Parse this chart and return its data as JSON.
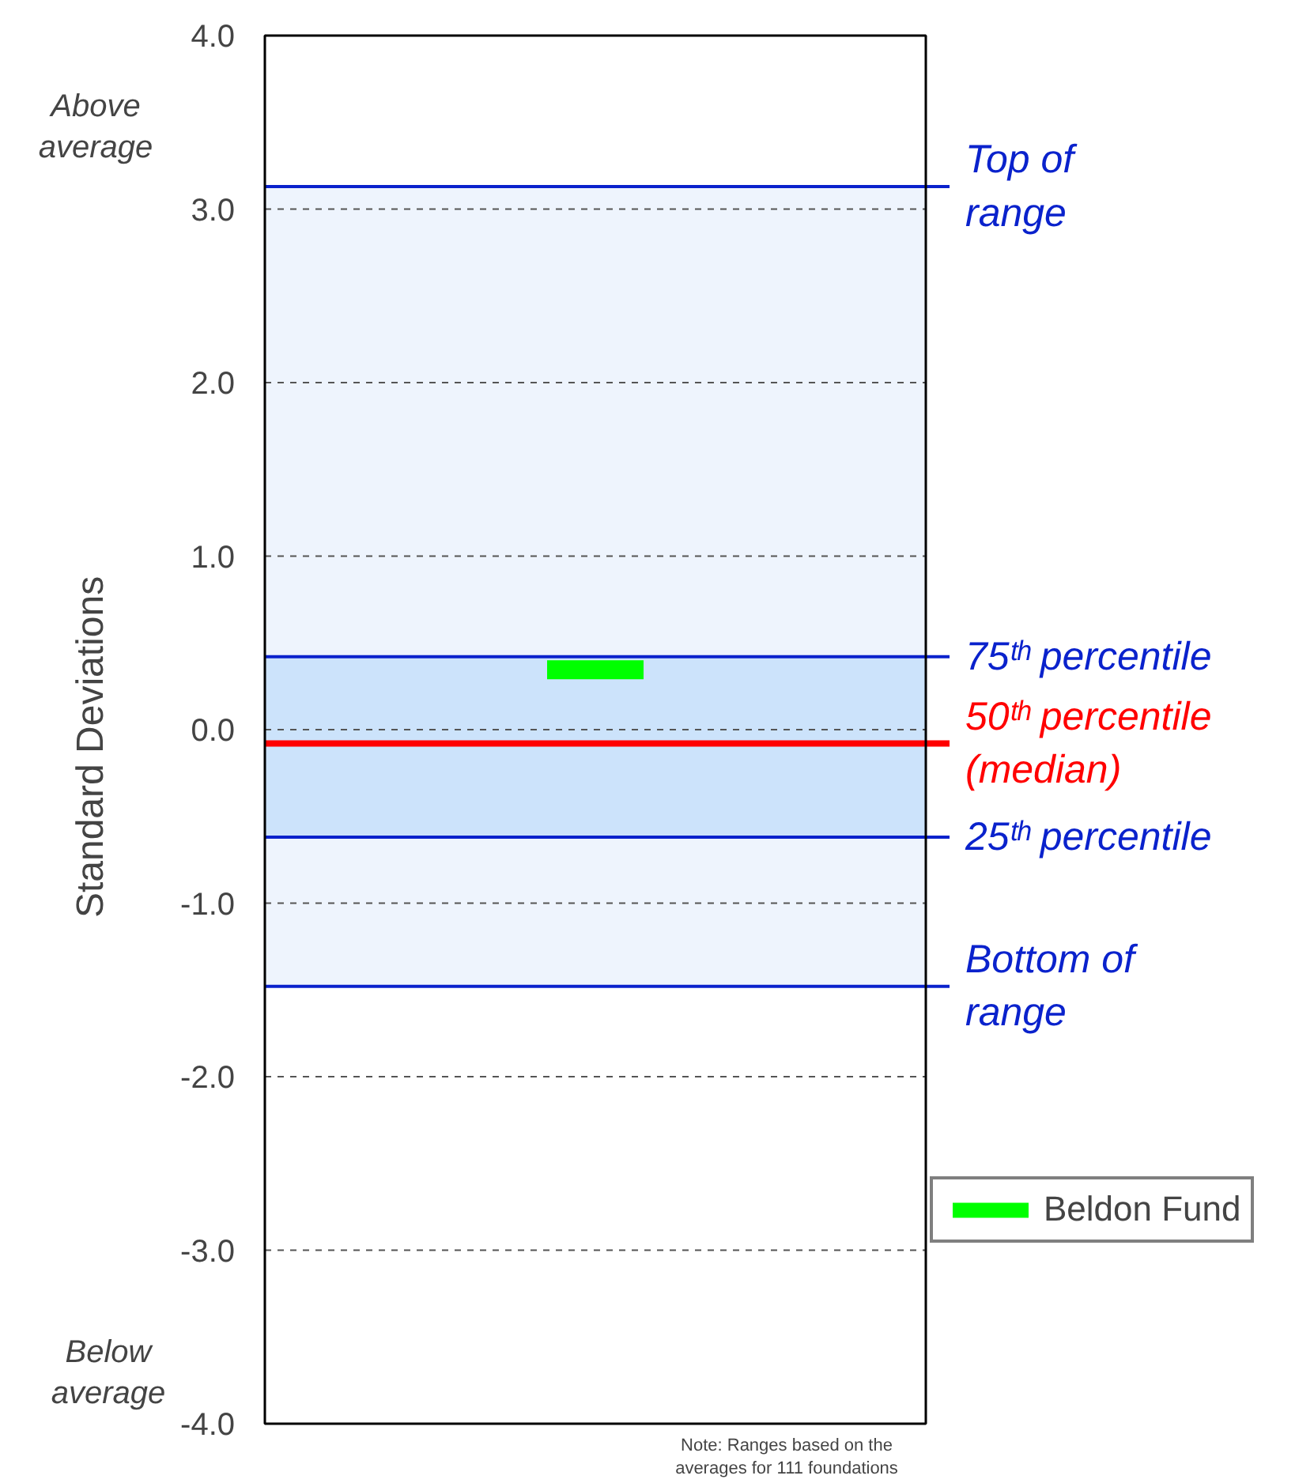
{
  "chart_data": {
    "type": "bar",
    "ylabel": "Standard Deviations",
    "categories": [
      null
    ],
    "series": [
      {
        "name": "Beldon Fund",
        "color": "#00ff00",
        "base": [
          0.29
        ],
        "values": [
          0.11
        ]
      }
    ],
    "ylim": [
      -4,
      4
    ],
    "yticks": [
      {
        "value": -4,
        "label": "-4.0"
      },
      {
        "value": -3,
        "label": "-3.0"
      },
      {
        "value": -2,
        "label": "-2.0"
      },
      {
        "value": -1,
        "label": "-1.0"
      },
      {
        "value": 0,
        "label": "0.0"
      },
      {
        "value": 1,
        "label": "1.0"
      },
      {
        "value": 2,
        "label": "2.0"
      },
      {
        "value": 3,
        "label": "3.0"
      },
      {
        "value": 4,
        "label": "4.0"
      }
    ],
    "grid": "y",
    "legend": "bottom right",
    "bands": [
      {
        "axis": "y",
        "from": -1.48,
        "to": 3.13,
        "color": "#eef4fd"
      },
      {
        "axis": "y",
        "from": -0.62,
        "to": 0.42,
        "color": "#cce3fb"
      }
    ],
    "ref_lines": [
      {
        "axis": "y",
        "value": 3.13,
        "label": "Top of\nrange",
        "color": "#0a22cc"
      },
      {
        "axis": "y",
        "value": 0.42,
        "label": "75ᵗʰ percentile",
        "color": "#0a22cc"
      },
      {
        "axis": "y",
        "value": -0.08,
        "label": "50ᵗʰ percentile\n(median)",
        "color": "#ff0000"
      },
      {
        "axis": "y",
        "value": -0.62,
        "label": "25ᵗʰ percentile",
        "color": "#0a22cc"
      },
      {
        "axis": "y",
        "value": -1.48,
        "label": "Bottom of\nrange",
        "color": "#0a22cc"
      }
    ],
    "annotations": [
      "Above\naverage",
      "Below\naverage",
      "Note: Ranges based on the\naverages for 111 foundations"
    ]
  }
}
